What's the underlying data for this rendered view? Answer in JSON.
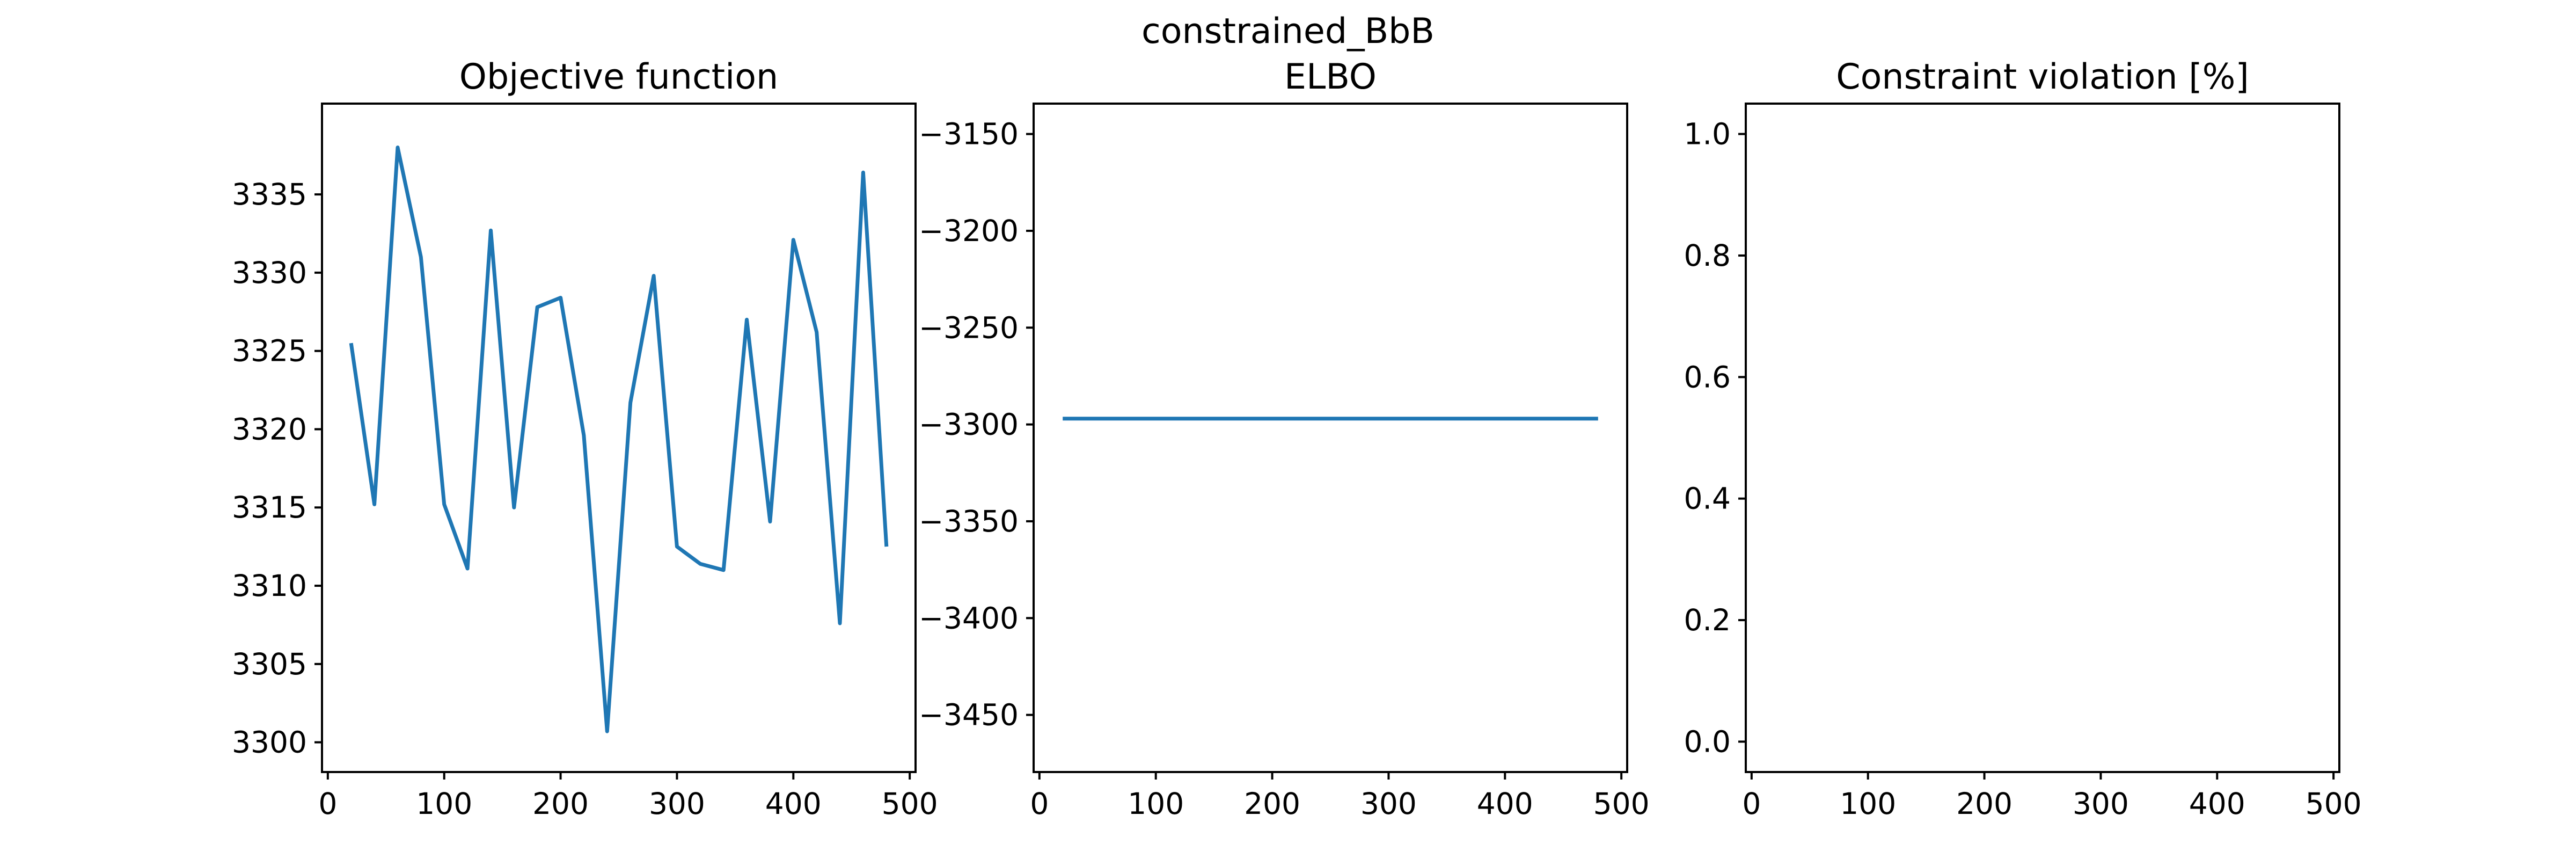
{
  "figure": {
    "suptitle": "constrained_BbB"
  },
  "colors": {
    "series": "#1f77b4",
    "axes": "#000000",
    "background": "#ffffff"
  },
  "chart_data": [
    {
      "type": "line",
      "title": "Objective function",
      "xlabel": "",
      "ylabel": "",
      "xlim": [
        -5,
        505
      ],
      "ylim": [
        3298.1,
        3340.8
      ],
      "xticks": [
        0,
        100,
        200,
        300,
        400,
        500
      ],
      "yticks": [
        3300,
        3305,
        3310,
        3315,
        3320,
        3325,
        3330,
        3335
      ],
      "grid": false,
      "series": [
        {
          "x": [
            20,
            40,
            60,
            80,
            100,
            120,
            140,
            160,
            180,
            200,
            220,
            240,
            260,
            280,
            300,
            320,
            340,
            360,
            380,
            400,
            420,
            440,
            460,
            480
          ],
          "y": [
            3325.5,
            3315.2,
            3338.0,
            3331.0,
            3315.2,
            3311.1,
            3332.7,
            3315.0,
            3327.8,
            3328.4,
            3319.6,
            3300.7,
            3321.7,
            3329.8,
            3312.5,
            3311.4,
            3311.0,
            3327.0,
            3314.1,
            3332.1,
            3326.2,
            3307.6,
            3336.4,
            3312.5
          ]
        }
      ]
    },
    {
      "type": "line",
      "title": "ELBO",
      "xlabel": "",
      "ylabel": "",
      "xlim": [
        -5,
        505
      ],
      "ylim": [
        -3479.5,
        -3134.3
      ],
      "xticks": [
        0,
        100,
        200,
        300,
        400,
        500
      ],
      "yticks": [
        -3450,
        -3400,
        -3350,
        -3300,
        -3250,
        -3200,
        -3150
      ],
      "grid": false,
      "series": [
        {
          "x": [
            20,
            40,
            60,
            80,
            100,
            120,
            140,
            160,
            180,
            200,
            220,
            240,
            260,
            280,
            300,
            320,
            340,
            360,
            380,
            400,
            420,
            440,
            460,
            480
          ],
          "y": [
            -3297,
            -3297,
            -3297,
            -3297,
            -3297,
            -3297,
            -3297,
            -3297,
            -3297,
            -3297,
            -3297,
            -3297,
            -3297,
            -3297,
            -3297,
            -3297,
            -3297,
            -3297,
            -3297,
            -3297,
            -3297,
            -3297,
            -3297,
            -3297
          ]
        }
      ]
    },
    {
      "type": "line",
      "title": "Constraint violation [%]",
      "xlabel": "",
      "ylabel": "",
      "xlim": [
        -5,
        505
      ],
      "ylim": [
        -0.05,
        1.05
      ],
      "xticks": [
        0,
        100,
        200,
        300,
        400,
        500
      ],
      "yticks": [
        0.0,
        0.2,
        0.4,
        0.6,
        0.8,
        1.0
      ],
      "ytick_labels": [
        "0.0",
        "0.2",
        "0.4",
        "0.6",
        "0.8",
        "1.0"
      ],
      "grid": false,
      "series": []
    }
  ]
}
